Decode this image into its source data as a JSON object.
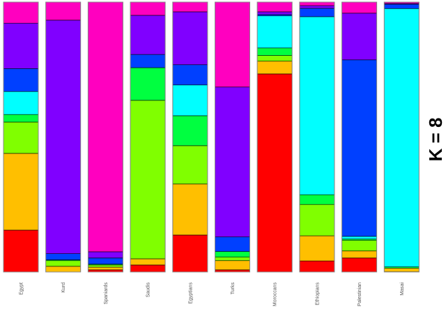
{
  "chart_data": {
    "type": "bar",
    "stacked": true,
    "title": "K = 8",
    "xlabel": "",
    "ylabel": "",
    "ylim": [
      0,
      1
    ],
    "grid": false,
    "categories": [
      "Egypt",
      "Kurd",
      "Spaniards",
      "Saudis",
      "Egyptians",
      "Turks",
      "Moroccans",
      "Ethiopians",
      "Palestinian",
      "Masai"
    ],
    "series": [
      {
        "color": "#FF0000",
        "values": [
          0.155,
          0.0,
          0.008,
          0.026,
          0.137,
          0.008,
          0.734,
          0.041,
          0.052,
          0.001
        ]
      },
      {
        "color": "#FFBF00",
        "values": [
          0.284,
          0.021,
          0.01,
          0.023,
          0.189,
          0.034,
          0.047,
          0.093,
          0.026,
          0.013
        ]
      },
      {
        "color": "#80FF00",
        "values": [
          0.116,
          0.021,
          0.008,
          0.587,
          0.142,
          0.013,
          0.021,
          0.116,
          0.039,
          0.0
        ]
      },
      {
        "color": "#00FF40",
        "values": [
          0.028,
          0.003,
          0.003,
          0.121,
          0.111,
          0.021,
          0.028,
          0.036,
          0.005,
          0.005
        ]
      },
      {
        "color": "#00FFFF",
        "values": [
          0.085,
          0.0,
          0.0,
          0.0,
          0.114,
          0.0,
          0.119,
          0.659,
          0.01,
          0.959
        ]
      },
      {
        "color": "#0040FF",
        "values": [
          0.085,
          0.023,
          0.023,
          0.049,
          0.075,
          0.054,
          0.005,
          0.031,
          0.654,
          0.016
        ]
      },
      {
        "color": "#8000FF",
        "values": [
          0.168,
          0.866,
          0.023,
          0.145,
          0.196,
          0.556,
          0.01,
          0.01,
          0.173,
          0.003
        ]
      },
      {
        "color": "#FF00BF",
        "values": [
          0.078,
          0.067,
          0.925,
          0.049,
          0.036,
          0.315,
          0.036,
          0.013,
          0.041,
          0.005
        ]
      }
    ]
  }
}
